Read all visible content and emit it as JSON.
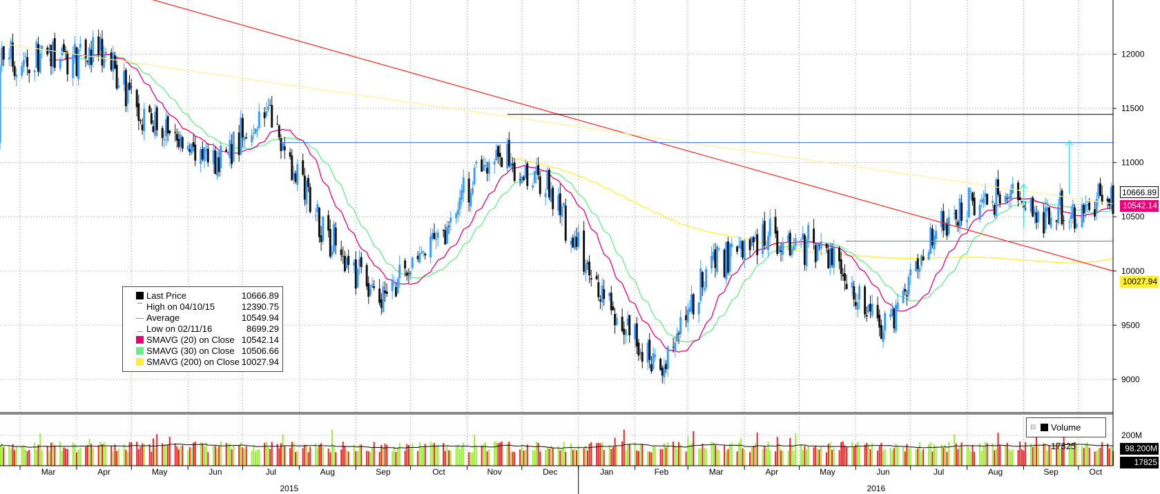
{
  "chart_data": {
    "type": "candlestick",
    "y_axis": {
      "ticks": [
        "12000",
        "11500",
        "11000",
        "10500",
        "10000",
        "9500",
        "9000"
      ],
      "ylim": [
        8700,
        12500
      ],
      "side": "right"
    },
    "volume_axis": {
      "ticks": [
        "200M"
      ]
    },
    "x_axis": {
      "months": [
        "Mar",
        "Apr",
        "May",
        "Jun",
        "Jul",
        "Aug",
        "Sep",
        "Oct",
        "Nov",
        "Dec",
        "Jan",
        "Feb",
        "Mar",
        "Apr",
        "May",
        "Jun",
        "Jul",
        "Aug",
        "Sep",
        "Oct"
      ],
      "years": [
        "2015",
        "2016"
      ],
      "start": "2015-02-18",
      "end": "2016-10-20"
    },
    "legend": [
      {
        "label": "Last Price",
        "value": "10666.89",
        "color": "#000000"
      },
      {
        "label": "High on 04/10/15",
        "value": "12390.75",
        "color": "#888888"
      },
      {
        "label": "Average",
        "value": "10549.94",
        "color": "#888888"
      },
      {
        "label": "Low on 02/11/16",
        "value": "8699.29",
        "color": "#888888"
      },
      {
        "label": "SMAVG (20) on Close",
        "value": "10542.14",
        "color": "#e8007a"
      },
      {
        "label": "SMAVG (30) on Close",
        "value": "10506.66",
        "color": "#66ee88"
      },
      {
        "label": "SMAVG (200) on Close",
        "value": "10027.94",
        "color": "#ffee33"
      }
    ],
    "volume_legend": {
      "label": "Volume",
      "value": "17825"
    },
    "price_tags": [
      {
        "value": "10666.89",
        "bg": "#ffffff",
        "fg": "#000000",
        "border": "#000000"
      },
      {
        "value": "10542.14",
        "bg": "#e8007a",
        "fg": "#ffffff",
        "border": "#e8007a"
      },
      {
        "value": "10027.94",
        "bg": "#ffee33",
        "fg": "#000000",
        "border": "#ffee33"
      }
    ],
    "volume_tags": [
      {
        "value": "98.200M",
        "bg": "#000000",
        "fg": "#ffffff"
      },
      {
        "value": "17825",
        "bg": "#000000",
        "fg": "#ffffff"
      }
    ],
    "monthly_closes": {
      "dates": [
        "2015-03",
        "2015-04",
        "2015-05",
        "2015-06",
        "2015-07",
        "2015-08",
        "2015-09",
        "2015-10",
        "2015-11",
        "2015-12",
        "2016-01",
        "2016-02",
        "2016-03",
        "2016-04",
        "2016-05",
        "2016-06",
        "2016-07",
        "2016-08",
        "2016-09",
        "2016-10"
      ],
      "values": [
        11950,
        12000,
        11300,
        11000,
        11450,
        10400,
        9700,
        10300,
        11100,
        10750,
        9700,
        9050,
        10100,
        10300,
        10200,
        9400,
        10400,
        10700,
        10500,
        10667
      ]
    },
    "annotations": {
      "horizontal_levels": [
        {
          "value": 11445,
          "color": "#000000"
        },
        {
          "value": 11185,
          "color": "#3f6bff"
        },
        {
          "value": 10275,
          "color": "#22bb22"
        }
      ],
      "trendlines": [
        {
          "from": [
            "2015-02-18",
            12900
          ],
          "to": [
            "2016-10-20",
            10000
          ],
          "color": "#ff2020"
        },
        {
          "from": [
            "2015-02-18",
            12100
          ],
          "to": [
            "2016-10-20",
            10620
          ],
          "color": "#fff099"
        }
      ],
      "arrows": [
        {
          "x": "2016-09-26",
          "from": 10710,
          "to": 11200,
          "color": "#33dddd"
        },
        {
          "x": "2016-09-01",
          "from": 10400,
          "to": 10800,
          "color": "#33dddd"
        }
      ]
    },
    "colors": {
      "up": "#3a9bff",
      "down": "#111111",
      "vol_up": "#99ee33",
      "vol_down": "#ee2222",
      "ma20": "#e8007a",
      "ma30": "#66ee88",
      "ma200": "#ffee33"
    }
  }
}
